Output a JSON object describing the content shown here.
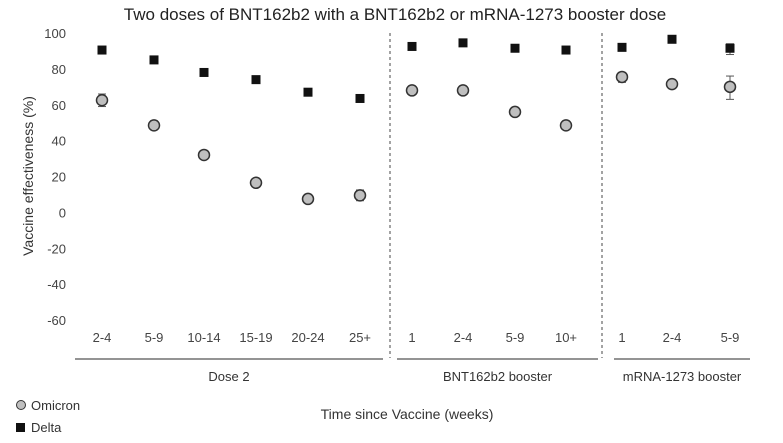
{
  "chart_data": {
    "type": "scatter",
    "title": "Two doses of BNT162b2 with a BNT162b2 or mRNA-1273 booster dose",
    "ylabel": "Vaccine effectiveness (%)",
    "xlabel": "Time since Vaccine (weeks)",
    "ylim": [
      -60,
      100
    ],
    "yticks": [
      100,
      80,
      60,
      40,
      20,
      0,
      -20,
      -40,
      -60
    ],
    "groups": [
      {
        "name": "Dose 2",
        "categories": [
          "2-4",
          "5-9",
          "10-14",
          "15-19",
          "20-24",
          "25+"
        ]
      },
      {
        "name": "BNT162b2 booster",
        "categories": [
          "1",
          "2-4",
          "5-9",
          "10+"
        ]
      },
      {
        "name": "mRNA-1273 booster",
        "categories": [
          "1",
          "2-4",
          "5-9"
        ]
      }
    ],
    "series": [
      {
        "name": "Omicron",
        "marker": "circle",
        "color": "#bfbfbf",
        "values": [
          62.5,
          48.5,
          32,
          16.5,
          7.5,
          9.5,
          68,
          68,
          56,
          48.5,
          75.5,
          71.5,
          70
        ],
        "error_low": [
          59,
          46,
          30.5,
          15,
          5.5,
          6.5,
          67,
          67,
          55,
          47.5,
          72.5,
          69,
          63
        ],
        "error_high": [
          66,
          51,
          33.5,
          18,
          9.5,
          12.5,
          69,
          69,
          57,
          49.5,
          78,
          74,
          76
        ]
      },
      {
        "name": "Delta",
        "marker": "square",
        "color": "#111111",
        "values": [
          90.5,
          85,
          78,
          74,
          67,
          63.5,
          92.5,
          94.5,
          91.5,
          90.5,
          92,
          96.5,
          91.5
        ],
        "error_low": [
          90,
          84.5,
          77.5,
          73.5,
          66.5,
          63,
          92,
          94,
          91,
          90,
          91.5,
          96,
          88
        ],
        "error_high": [
          91,
          85.5,
          78.5,
          74.5,
          67.5,
          64,
          93,
          95,
          92,
          91,
          92.5,
          97,
          94
        ]
      }
    ],
    "grid": false,
    "legend_position": "bottom-left"
  }
}
